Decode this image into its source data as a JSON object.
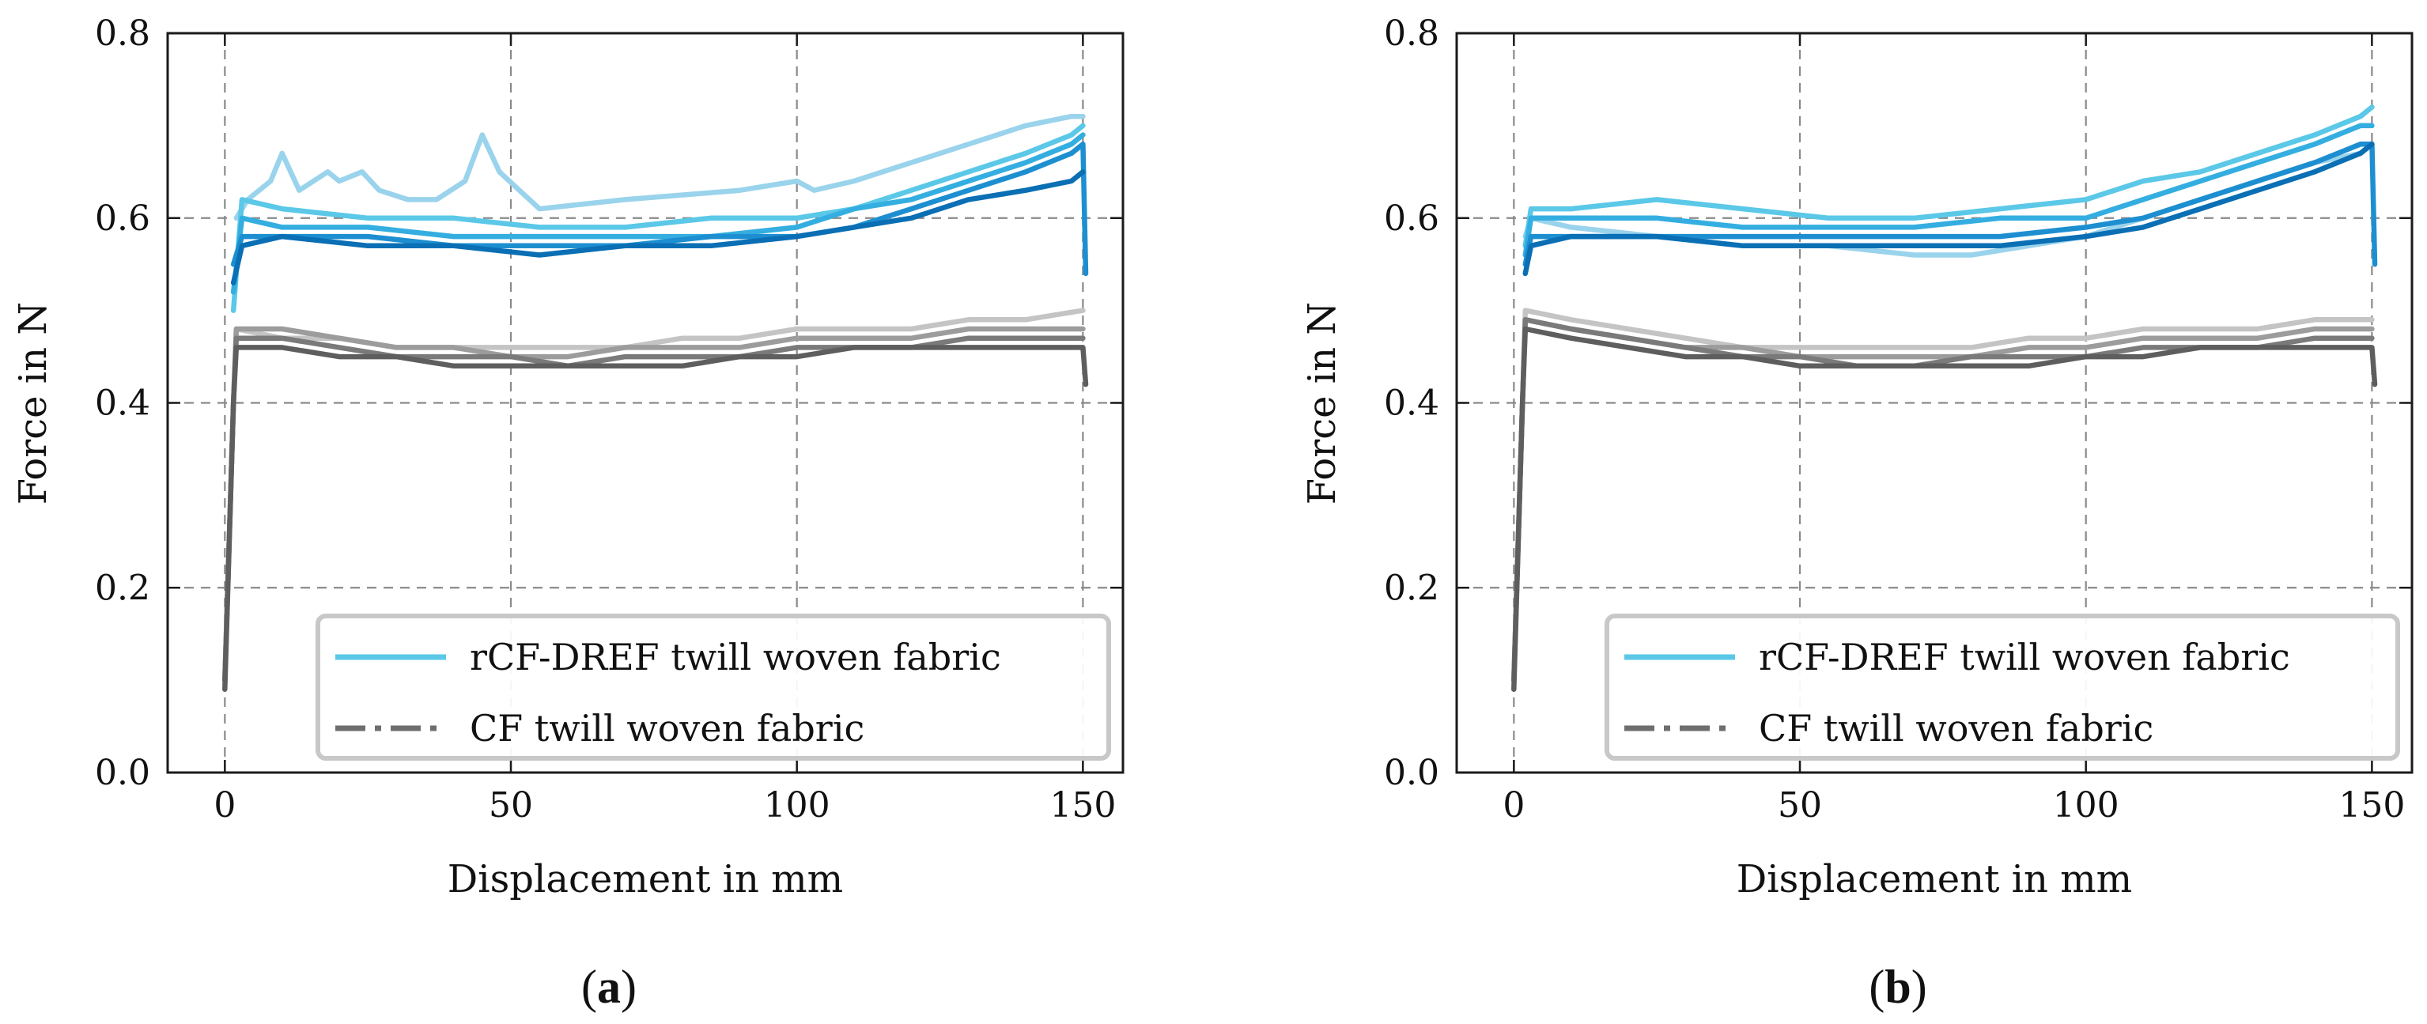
{
  "chart_data": [
    {
      "panel": "(a)",
      "type": "line",
      "xlabel": "Displacement in mm",
      "ylabel": "Force in N",
      "xlim": [
        -10,
        157
      ],
      "ylim": [
        0.0,
        0.8
      ],
      "xticks": [
        0,
        50,
        100,
        150
      ],
      "yticks": [
        0.0,
        0.2,
        0.4,
        0.6,
        0.8
      ],
      "xtick_labels": [
        "0",
        "50",
        "100",
        "150"
      ],
      "ytick_labels": [
        "0.0",
        "0.2",
        "0.4",
        "0.6",
        "0.8"
      ],
      "grid": true,
      "legend": {
        "location": "lower-right",
        "entries": [
          {
            "label": "rCF-DREF twill woven fabric",
            "style": "solid",
            "color": "#5bc8e8"
          },
          {
            "label": "CF twill woven fabric",
            "style": "dashdot",
            "color": "#6e6e6e"
          }
        ]
      },
      "series": [
        {
          "name": "rCF-DREF 1",
          "group": "rCF-DREF",
          "color": "#9ad3ec",
          "x": [
            2,
            4,
            8,
            10,
            13,
            18,
            20,
            24,
            27,
            32,
            37,
            42,
            45,
            48,
            55,
            70,
            90,
            100,
            103,
            110,
            120,
            130,
            140,
            148,
            150
          ],
          "y": [
            0.6,
            0.62,
            0.64,
            0.67,
            0.63,
            0.65,
            0.64,
            0.65,
            0.63,
            0.62,
            0.62,
            0.64,
            0.69,
            0.65,
            0.61,
            0.62,
            0.63,
            0.64,
            0.63,
            0.64,
            0.66,
            0.68,
            0.7,
            0.71,
            0.71
          ]
        },
        {
          "name": "rCF-DREF 2",
          "group": "rCF-DREF",
          "color": "#5bc8e8",
          "x": [
            1.5,
            3,
            10,
            25,
            40,
            55,
            70,
            85,
            100,
            110,
            120,
            130,
            140,
            148,
            150
          ],
          "y": [
            0.5,
            0.62,
            0.61,
            0.6,
            0.6,
            0.59,
            0.59,
            0.6,
            0.6,
            0.61,
            0.63,
            0.65,
            0.67,
            0.69,
            0.7
          ]
        },
        {
          "name": "rCF-DREF 3",
          "group": "rCF-DREF",
          "color": "#34aee0",
          "x": [
            1.5,
            3,
            10,
            25,
            40,
            55,
            70,
            85,
            100,
            110,
            120,
            130,
            140,
            148,
            150
          ],
          "y": [
            0.52,
            0.6,
            0.59,
            0.59,
            0.58,
            0.58,
            0.58,
            0.58,
            0.59,
            0.61,
            0.62,
            0.64,
            0.66,
            0.68,
            0.69
          ]
        },
        {
          "name": "rCF-DREF 4",
          "group": "rCF-DREF",
          "color": "#1d8fd1",
          "x": [
            1.5,
            3,
            10,
            25,
            40,
            55,
            70,
            85,
            100,
            110,
            120,
            130,
            140,
            148,
            150,
            150.5
          ],
          "y": [
            0.55,
            0.58,
            0.58,
            0.58,
            0.57,
            0.57,
            0.57,
            0.58,
            0.58,
            0.59,
            0.61,
            0.63,
            0.65,
            0.67,
            0.68,
            0.54
          ]
        },
        {
          "name": "rCF-DREF 5",
          "group": "rCF-DREF",
          "color": "#0a6fb4",
          "x": [
            1.5,
            3,
            10,
            25,
            40,
            55,
            70,
            85,
            100,
            110,
            120,
            130,
            140,
            148,
            150
          ],
          "y": [
            0.53,
            0.57,
            0.58,
            0.57,
            0.57,
            0.56,
            0.57,
            0.57,
            0.58,
            0.59,
            0.6,
            0.62,
            0.63,
            0.64,
            0.65
          ]
        },
        {
          "name": "CF 1",
          "group": "CF",
          "color": "#c4c4c4",
          "x": [
            0,
            1.5,
            2,
            10,
            20,
            30,
            40,
            50,
            60,
            70,
            80,
            90,
            100,
            110,
            120,
            130,
            140,
            150
          ],
          "y": [
            0.1,
            0.4,
            0.48,
            0.47,
            0.47,
            0.46,
            0.46,
            0.46,
            0.46,
            0.46,
            0.47,
            0.47,
            0.48,
            0.48,
            0.48,
            0.49,
            0.49,
            0.5
          ]
        },
        {
          "name": "CF 2",
          "group": "CF",
          "color": "#9c9c9c",
          "x": [
            0,
            1.5,
            2,
            10,
            20,
            30,
            40,
            50,
            60,
            70,
            80,
            90,
            100,
            110,
            120,
            130,
            140,
            150
          ],
          "y": [
            0.1,
            0.4,
            0.48,
            0.48,
            0.47,
            0.46,
            0.46,
            0.45,
            0.45,
            0.46,
            0.46,
            0.46,
            0.47,
            0.47,
            0.47,
            0.48,
            0.48,
            0.48
          ]
        },
        {
          "name": "CF 3",
          "group": "CF",
          "color": "#7a7a7a",
          "x": [
            0,
            1.5,
            2,
            10,
            20,
            30,
            40,
            50,
            60,
            70,
            80,
            90,
            100,
            110,
            120,
            130,
            140,
            150
          ],
          "y": [
            0.1,
            0.4,
            0.47,
            0.47,
            0.46,
            0.45,
            0.45,
            0.45,
            0.44,
            0.45,
            0.45,
            0.45,
            0.46,
            0.46,
            0.46,
            0.47,
            0.47,
            0.47
          ]
        },
        {
          "name": "CF 4",
          "group": "CF",
          "color": "#5e5e5e",
          "x": [
            0,
            1.5,
            2,
            10,
            20,
            30,
            40,
            50,
            60,
            70,
            80,
            90,
            100,
            110,
            120,
            130,
            140,
            150,
            150.5
          ],
          "y": [
            0.09,
            0.4,
            0.46,
            0.46,
            0.45,
            0.45,
            0.44,
            0.44,
            0.44,
            0.44,
            0.44,
            0.45,
            0.45,
            0.46,
            0.46,
            0.46,
            0.46,
            0.46,
            0.42
          ]
        }
      ]
    },
    {
      "panel": "(b)",
      "type": "line",
      "xlabel": "Displacement in mm",
      "ylabel": "Force in N",
      "xlim": [
        -10,
        157
      ],
      "ylim": [
        0.0,
        0.8
      ],
      "xticks": [
        0,
        50,
        100,
        150
      ],
      "yticks": [
        0.0,
        0.2,
        0.4,
        0.6,
        0.8
      ],
      "xtick_labels": [
        "0",
        "50",
        "100",
        "150"
      ],
      "ytick_labels": [
        "0.0",
        "0.2",
        "0.4",
        "0.6",
        "0.8"
      ],
      "grid": true,
      "legend": {
        "location": "lower-right",
        "entries": [
          {
            "label": "rCF-DREF twill woven fabric",
            "style": "solid",
            "color": "#5bc8e8"
          },
          {
            "label": "CF twill woven fabric",
            "style": "dashdot",
            "color": "#6e6e6e"
          }
        ]
      },
      "series": [
        {
          "name": "rCF-DREF 1",
          "group": "rCF-DREF",
          "color": "#9ad3ec",
          "x": [
            2,
            3,
            10,
            25,
            40,
            55,
            70,
            80,
            90,
            100,
            110,
            120,
            130,
            140,
            148,
            150
          ],
          "y": [
            0.58,
            0.6,
            0.59,
            0.58,
            0.57,
            0.57,
            0.56,
            0.56,
            0.57,
            0.58,
            0.6,
            0.62,
            0.64,
            0.66,
            0.67,
            0.68
          ]
        },
        {
          "name": "rCF-DREF 2",
          "group": "rCF-DREF",
          "color": "#5bc8e8",
          "x": [
            2,
            3,
            10,
            25,
            40,
            55,
            70,
            85,
            100,
            110,
            120,
            130,
            140,
            148,
            150
          ],
          "y": [
            0.57,
            0.61,
            0.61,
            0.62,
            0.61,
            0.6,
            0.6,
            0.61,
            0.62,
            0.64,
            0.65,
            0.67,
            0.69,
            0.71,
            0.72
          ]
        },
        {
          "name": "rCF-DREF 3",
          "group": "rCF-DREF",
          "color": "#34aee0",
          "x": [
            2,
            3,
            10,
            25,
            40,
            55,
            70,
            85,
            100,
            110,
            120,
            130,
            140,
            148,
            150
          ],
          "y": [
            0.56,
            0.6,
            0.6,
            0.6,
            0.59,
            0.59,
            0.59,
            0.6,
            0.6,
            0.62,
            0.64,
            0.66,
            0.68,
            0.7,
            0.7
          ]
        },
        {
          "name": "rCF-DREF 4",
          "group": "rCF-DREF",
          "color": "#1d8fd1",
          "x": [
            2,
            3,
            10,
            25,
            40,
            55,
            70,
            85,
            100,
            110,
            120,
            130,
            140,
            148,
            150,
            150.5
          ],
          "y": [
            0.55,
            0.58,
            0.58,
            0.58,
            0.58,
            0.58,
            0.58,
            0.58,
            0.59,
            0.6,
            0.62,
            0.64,
            0.66,
            0.68,
            0.68,
            0.55
          ]
        },
        {
          "name": "rCF-DREF 5",
          "group": "rCF-DREF",
          "color": "#0a6fb4",
          "x": [
            2,
            3,
            10,
            25,
            40,
            55,
            70,
            85,
            100,
            110,
            120,
            130,
            140,
            148,
            150
          ],
          "y": [
            0.54,
            0.57,
            0.58,
            0.58,
            0.57,
            0.57,
            0.57,
            0.57,
            0.58,
            0.59,
            0.61,
            0.63,
            0.65,
            0.67,
            0.68
          ]
        },
        {
          "name": "CF 1",
          "group": "CF",
          "color": "#c4c4c4",
          "x": [
            0,
            1.5,
            2,
            10,
            20,
            30,
            40,
            50,
            60,
            70,
            80,
            90,
            100,
            110,
            120,
            130,
            140,
            150
          ],
          "y": [
            0.1,
            0.4,
            0.5,
            0.49,
            0.48,
            0.47,
            0.46,
            0.46,
            0.46,
            0.46,
            0.46,
            0.47,
            0.47,
            0.48,
            0.48,
            0.48,
            0.49,
            0.49
          ]
        },
        {
          "name": "CF 2",
          "group": "CF",
          "color": "#9c9c9c",
          "x": [
            0,
            1.5,
            2,
            10,
            20,
            30,
            40,
            50,
            60,
            70,
            80,
            90,
            100,
            110,
            120,
            130,
            140,
            150
          ],
          "y": [
            0.1,
            0.4,
            0.49,
            0.48,
            0.47,
            0.46,
            0.46,
            0.45,
            0.45,
            0.45,
            0.45,
            0.46,
            0.46,
            0.47,
            0.47,
            0.47,
            0.48,
            0.48
          ]
        },
        {
          "name": "CF 3",
          "group": "CF",
          "color": "#7a7a7a",
          "x": [
            0,
            1.5,
            2,
            10,
            20,
            30,
            40,
            50,
            60,
            70,
            80,
            90,
            100,
            110,
            120,
            130,
            140,
            150
          ],
          "y": [
            0.1,
            0.4,
            0.49,
            0.48,
            0.47,
            0.46,
            0.45,
            0.45,
            0.44,
            0.44,
            0.45,
            0.45,
            0.45,
            0.46,
            0.46,
            0.46,
            0.47,
            0.47
          ]
        },
        {
          "name": "CF 4",
          "group": "CF",
          "color": "#5e5e5e",
          "x": [
            0,
            1.5,
            2,
            10,
            20,
            30,
            40,
            50,
            60,
            70,
            80,
            90,
            100,
            110,
            120,
            130,
            140,
            150,
            150.5
          ],
          "y": [
            0.09,
            0.4,
            0.48,
            0.47,
            0.46,
            0.45,
            0.45,
            0.44,
            0.44,
            0.44,
            0.44,
            0.44,
            0.45,
            0.45,
            0.46,
            0.46,
            0.46,
            0.46,
            0.42
          ]
        }
      ]
    }
  ]
}
